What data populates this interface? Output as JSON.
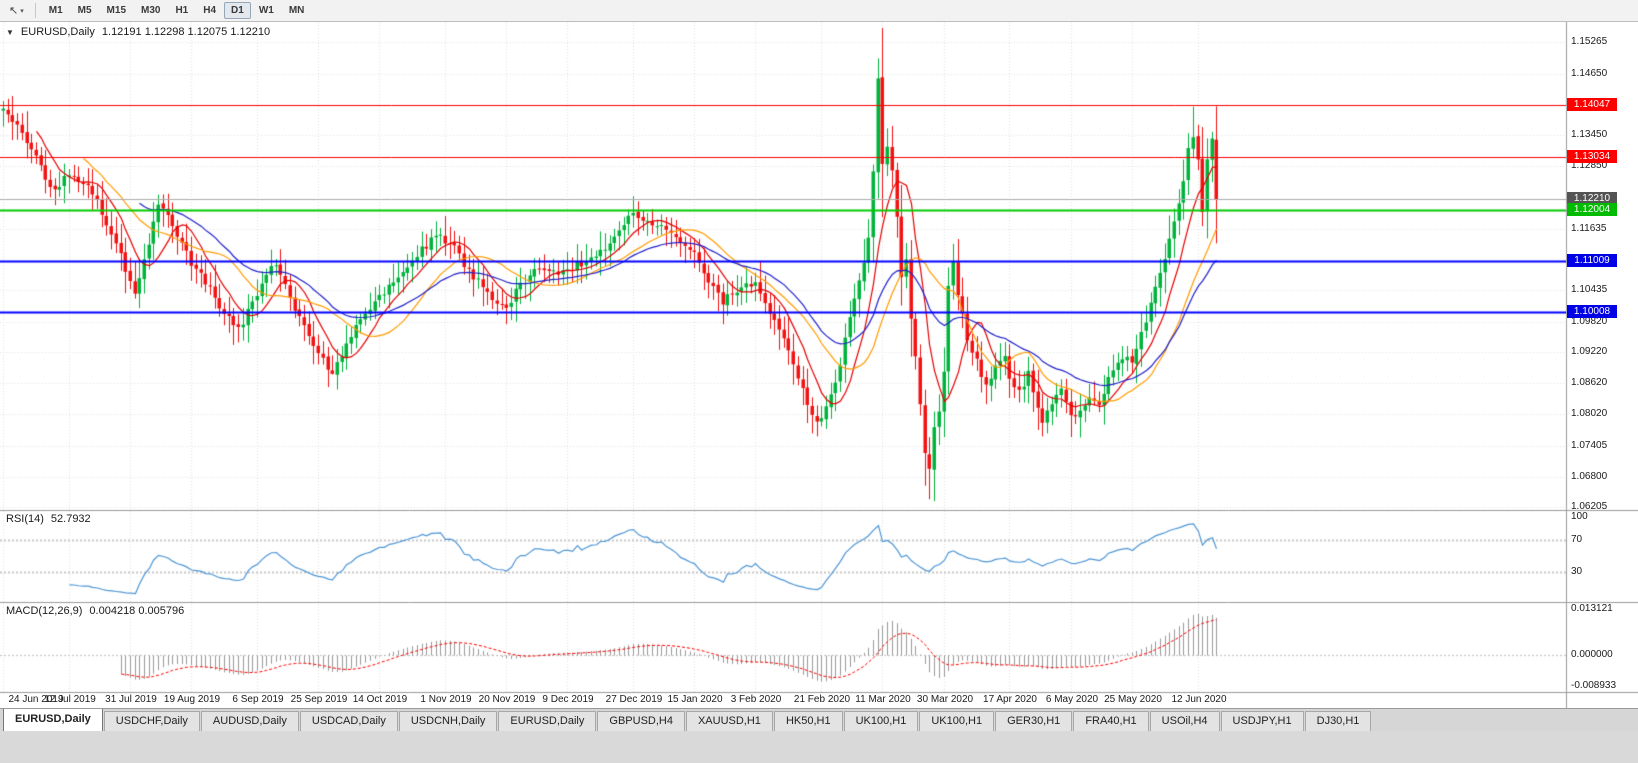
{
  "toolbar": {
    "cursor_icon": "↖",
    "caret_icon": "▾",
    "timeframes": [
      {
        "label": "M1",
        "active": false
      },
      {
        "label": "M5",
        "active": false
      },
      {
        "label": "M15",
        "active": false
      },
      {
        "label": "M30",
        "active": false
      },
      {
        "label": "H1",
        "active": false
      },
      {
        "label": "H4",
        "active": false
      },
      {
        "label": "D1",
        "active": true
      },
      {
        "label": "W1",
        "active": false
      },
      {
        "label": "MN",
        "active": false
      }
    ]
  },
  "chart": {
    "collapse_icon": "▼",
    "title": "EURUSD,Daily",
    "ohlc": "1.12191 1.12298 1.12075 1.12210"
  },
  "chart_data": {
    "type": "candlestick",
    "symbol": "EURUSD",
    "timeframe": "Daily",
    "open": 1.12191,
    "high": 1.12298,
    "low": 1.12075,
    "close": 1.1221,
    "current_price": 1.1221,
    "up_color": "#00b33c",
    "down_color": "#f21212",
    "grid_color": "#e4e4e4",
    "price_axis": {
      "top": 1.1566,
      "bottom": 1.0615,
      "labels": [
        1.15265,
        1.1465,
        1.1345,
        1.1285,
        1.11635,
        1.10435,
        1.0982,
        1.0922,
        1.0862,
        1.0802,
        1.07405,
        1.068,
        1.06205
      ]
    },
    "levels": [
      {
        "price": 1.14047,
        "label": "1.14047",
        "color": "#ff0000",
        "badge_color": "#ff0000",
        "width": 1
      },
      {
        "price": 1.13034,
        "label": "1.13034",
        "color": "#ff0000",
        "badge_color": "#ff0000",
        "width": 1
      },
      {
        "price": 1.1221,
        "label": "1.12210",
        "color": "#ababab",
        "badge_color": "#545454",
        "width": 1,
        "style": "current"
      },
      {
        "price": 1.12004,
        "label": "1.12004",
        "color": "#00cc00",
        "badge_color": "#00bb00",
        "width": 2
      },
      {
        "price": 1.11009,
        "label": "1.11009",
        "color": "#0000ff",
        "badge_color": "#0000e6",
        "width": 2
      },
      {
        "price": 1.10008,
        "label": "1.10008",
        "color": "#0000ff",
        "badge_color": "#0000e6",
        "width": 2
      }
    ],
    "dates": [
      {
        "label": "24 Jun 2019",
        "index": 0
      },
      {
        "label": "12 Jul 2019",
        "index": 14
      },
      {
        "label": "31 Jul 2019",
        "index": 27
      },
      {
        "label": "19 Aug 2019",
        "index": 40
      },
      {
        "label": "6 Sep 2019",
        "index": 54
      },
      {
        "label": "25 Sep 2019",
        "index": 67
      },
      {
        "label": "14 Oct 2019",
        "index": 80
      },
      {
        "label": "1 Nov 2019",
        "index": 94
      },
      {
        "label": "20 Nov 2019",
        "index": 107
      },
      {
        "label": "9 Dec 2019",
        "index": 120
      },
      {
        "label": "27 Dec 2019",
        "index": 134
      },
      {
        "label": "15 Jan 2020",
        "index": 147
      },
      {
        "label": "3 Feb 2020",
        "index": 160
      },
      {
        "label": "21 Feb 2020",
        "index": 174
      },
      {
        "label": "11 Mar 2020",
        "index": 187
      },
      {
        "label": "30 Mar 2020",
        "index": 200
      },
      {
        "label": "17 Apr 2020",
        "index": 214
      },
      {
        "label": "6 May 2020",
        "index": 227
      },
      {
        "label": "25 May 2020",
        "index": 240
      },
      {
        "label": "12 Jun 2020",
        "index": 254
      }
    ],
    "candles": {
      "count": 259,
      "seed": 1337,
      "close_anchors": [
        [
          0,
          1.1393
        ],
        [
          2,
          1.1372
        ],
        [
          5,
          1.133
        ],
        [
          8,
          1.1282
        ],
        [
          11,
          1.1238
        ],
        [
          14,
          1.1268
        ],
        [
          17,
          1.1252
        ],
        [
          20,
          1.1215
        ],
        [
          23,
          1.1152
        ],
        [
          26,
          1.1085
        ],
        [
          28,
          1.1042
        ],
        [
          30,
          1.1098
        ],
        [
          33,
          1.1205
        ],
        [
          36,
          1.1172
        ],
        [
          40,
          1.1098
        ],
        [
          44,
          1.1048
        ],
        [
          47,
          1.0992
        ],
        [
          50,
          1.0968
        ],
        [
          54,
          1.1035
        ],
        [
          58,
          1.1098
        ],
        [
          62,
          1.1005
        ],
        [
          65,
          1.0952
        ],
        [
          68,
          1.0906
        ],
        [
          70,
          1.0882
        ],
        [
          73,
          1.0932
        ],
        [
          76,
          1.0986
        ],
        [
          80,
          1.1032
        ],
        [
          84,
          1.1072
        ],
        [
          88,
          1.1112
        ],
        [
          92,
          1.1152
        ],
        [
          96,
          1.1122
        ],
        [
          100,
          1.1072
        ],
        [
          104,
          1.1032
        ],
        [
          107,
          1.1012
        ],
        [
          110,
          1.1058
        ],
        [
          114,
          1.1082
        ],
        [
          118,
          1.1075
        ],
        [
          122,
          1.1092
        ],
        [
          126,
          1.1112
        ],
        [
          130,
          1.1142
        ],
        [
          134,
          1.1198
        ],
        [
          137,
          1.1172
        ],
        [
          140,
          1.1162
        ],
        [
          144,
          1.1132
        ],
        [
          147,
          1.1112
        ],
        [
          150,
          1.1062
        ],
        [
          153,
          1.1022
        ],
        [
          156,
          1.1042
        ],
        [
          160,
          1.106
        ],
        [
          163,
          1.1002
        ],
        [
          166,
          1.0942
        ],
        [
          169,
          1.0872
        ],
        [
          172,
          1.0802
        ],
        [
          174,
          1.0786
        ],
        [
          176,
          1.0842
        ],
        [
          178,
          1.0892
        ],
        [
          180,
          1.0992
        ],
        [
          182,
          1.1062
        ],
        [
          184,
          1.1142
        ],
        [
          185,
          1.1282
        ],
        [
          186,
          1.1448
        ],
        [
          187,
          1.1282
        ],
        [
          188,
          1.133
        ],
        [
          189,
          1.1282
        ],
        [
          190,
          1.118
        ],
        [
          191,
          1.1062
        ],
        [
          192,
          1.1108
        ],
        [
          193,
          1.0982
        ],
        [
          194,
          1.0922
        ],
        [
          195,
          1.0822
        ],
        [
          196,
          1.0722
        ],
        [
          197,
          1.0692
        ],
        [
          198,
          1.0772
        ],
        [
          199,
          1.0802
        ],
        [
          200,
          1.0892
        ],
        [
          201,
          1.1048
        ],
        [
          202,
          1.1098
        ],
        [
          203,
          1.1032
        ],
        [
          205,
          1.0952
        ],
        [
          207,
          1.0902
        ],
        [
          209,
          1.0862
        ],
        [
          211,
          1.0892
        ],
        [
          213,
          1.0912
        ],
        [
          214,
          1.0872
        ],
        [
          216,
          1.0842
        ],
        [
          218,
          1.0882
        ],
        [
          220,
          1.0822
        ],
        [
          221,
          1.0778
        ],
        [
          223,
          1.0822
        ],
        [
          225,
          1.0852
        ],
        [
          227,
          1.0796
        ],
        [
          229,
          1.0812
        ],
        [
          231,
          1.0832
        ],
        [
          233,
          1.0816
        ],
        [
          235,
          1.0872
        ],
        [
          237,
          1.0902
        ],
        [
          239,
          1.0916
        ],
        [
          240,
          1.0902
        ],
        [
          242,
          1.0962
        ],
        [
          244,
          1.1012
        ],
        [
          246,
          1.1082
        ],
        [
          248,
          1.1142
        ],
        [
          250,
          1.1212
        ],
        [
          251,
          1.1252
        ],
        [
          252,
          1.1312
        ],
        [
          253,
          1.1348
        ],
        [
          254,
          1.1302
        ],
        [
          255,
          1.1192
        ],
        [
          256,
          1.1292
        ],
        [
          257,
          1.1332
        ],
        [
          258,
          1.1221
        ]
      ],
      "wick_overrides": {
        "0": {
          "high": 1.1412
        },
        "28": {
          "low": 1.1027
        },
        "70": {
          "low": 1.0879
        },
        "174": {
          "low": 1.0778
        },
        "186": {
          "high": 1.1495
        },
        "197": {
          "low": 1.0636
        },
        "253": {
          "high": 1.1401
        },
        "255": {
          "low": 1.1168
        },
        "257": {
          "high": 1.1352
        }
      },
      "noise": {
        "close": 0.0018,
        "gap": 0.0005,
        "wick_base": 0.0009,
        "wick_rand": 0.0024,
        "wick_body": 0.5
      }
    },
    "moving_averages": [
      {
        "type": "sma",
        "period": 8,
        "color": "#e60000"
      },
      {
        "type": "sma",
        "period": 18,
        "color": "#ff9c00"
      },
      {
        "type": "ema",
        "period": 30,
        "color": "#2222cc"
      }
    ],
    "indicators": {
      "rsi": {
        "title": "RSI(14)",
        "value_text": "52.7932",
        "period": 14,
        "color": "#4f97d7",
        "levels": [
          70,
          30
        ],
        "range": [
          0,
          100
        ],
        "axis_labels": [
          {
            "label": "100",
            "value": 100
          },
          {
            "label": "70",
            "value": 70
          },
          {
            "label": "30",
            "value": 30
          }
        ]
      },
      "macd": {
        "title": "MACD(12,26,9)",
        "values_text": "0.004218 0.005796",
        "fast": 12,
        "slow": 26,
        "signal": 9,
        "histogram_color": "#9a9a9a",
        "signal_color": "#ff0000",
        "range": [
          -0.008933,
          0.013121
        ],
        "axis_labels": [
          {
            "label": "0.013121",
            "value": 0.013121
          },
          {
            "label": "0.000000",
            "value": 0
          },
          {
            "label": "-0.008933",
            "value": -0.008933
          }
        ]
      }
    }
  },
  "tabs": [
    {
      "label": "EURUSD,Daily",
      "active": true
    },
    {
      "label": "USDCHF,Daily",
      "active": false
    },
    {
      "label": "AUDUSD,Daily",
      "active": false
    },
    {
      "label": "USDCAD,Daily",
      "active": false
    },
    {
      "label": "USDCNH,Daily",
      "active": false
    },
    {
      "label": "EURUSD,Daily",
      "active": false
    },
    {
      "label": "GBPUSD,H4",
      "active": false
    },
    {
      "label": "XAUUSD,H1",
      "active": false
    },
    {
      "label": "HK50,H1",
      "active": false
    },
    {
      "label": "UK100,H1",
      "active": false
    },
    {
      "label": "UK100,H1",
      "active": false
    },
    {
      "label": "GER30,H1",
      "active": false
    },
    {
      "label": "FRA40,H1",
      "active": false
    },
    {
      "label": "USOil,H4",
      "active": false
    },
    {
      "label": "USDJPY,H1",
      "active": false
    },
    {
      "label": "DJ30,H1",
      "active": false
    }
  ]
}
